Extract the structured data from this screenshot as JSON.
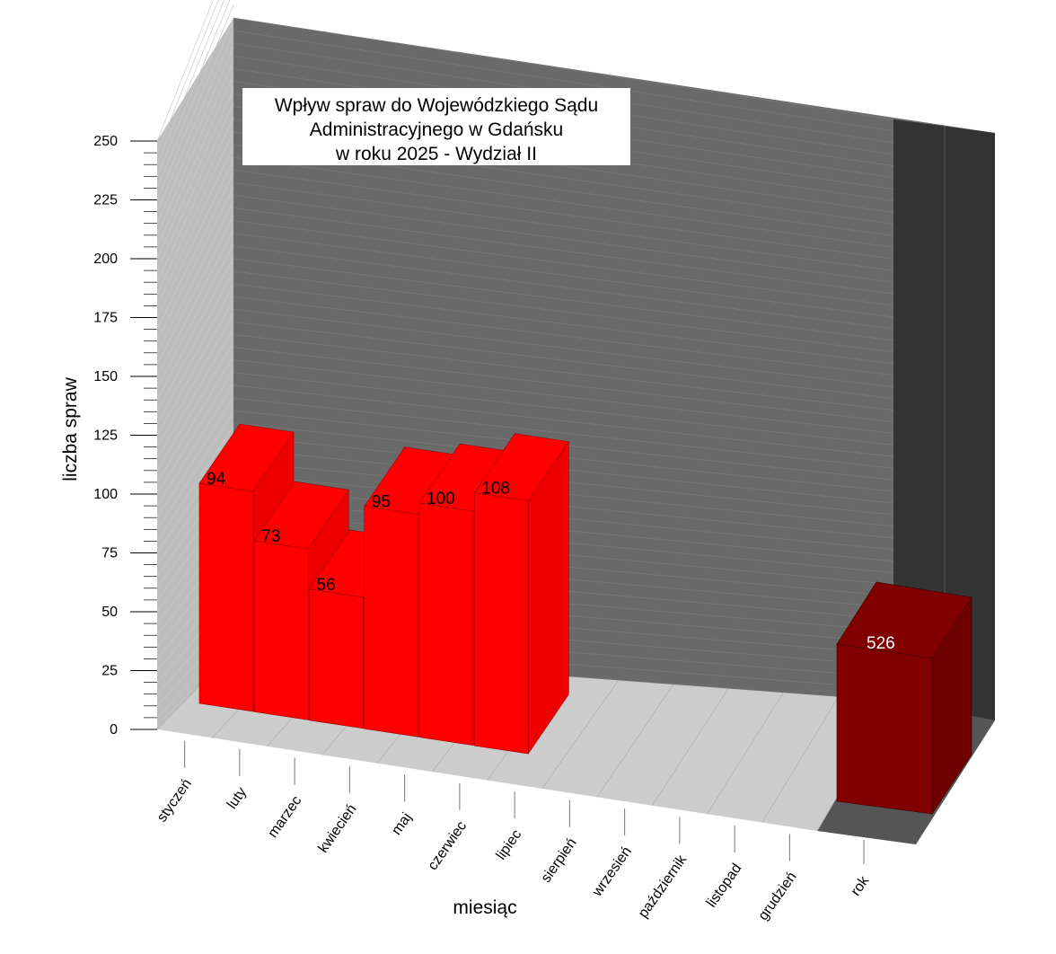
{
  "chart_data": {
    "type": "bar",
    "title_lines": [
      "Wpływ spraw do Wojewódzkiego Sądu",
      "Administracyjnego w Gdańsku",
      "w roku 2025 - Wydział II"
    ],
    "xlabel": "miesiąc",
    "ylabel": "liczba spraw",
    "ylim": [
      0,
      250
    ],
    "y_ticks": [
      "0",
      "25",
      "50",
      "75",
      "100",
      "125",
      "150",
      "175",
      "200",
      "225",
      "250"
    ],
    "categories": [
      "styczeń",
      "luty",
      "marzec",
      "kwiecień",
      "maj",
      "czerwiec",
      "lipiec",
      "sierpień",
      "wrzesień",
      "październik",
      "listopad",
      "grudzień"
    ],
    "values": [
      94,
      73,
      56,
      95,
      100,
      108,
      null,
      null,
      null,
      null,
      null,
      null
    ],
    "data_labels": [
      "94",
      "73",
      "56",
      "95",
      "100",
      "108",
      "",
      "",
      "",
      "",
      "",
      ""
    ],
    "total": {
      "category": "rok",
      "value": 526,
      "label": "526"
    },
    "colors": {
      "bar_front": "#ff0000",
      "bar_top": "#ff0000",
      "bar_side": "#ee0000",
      "total_front": "#800000",
      "total_side": "#6f0000",
      "back_wall": "#6a6a6a",
      "side_wall": "#bdbdbd",
      "floor": "#cccccc",
      "right_panel": "#333333"
    },
    "grid": true,
    "style": "3d"
  }
}
